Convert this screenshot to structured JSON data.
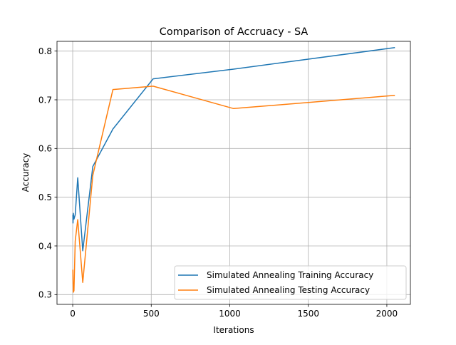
{
  "chart_data": {
    "type": "line",
    "title": "Comparison of Accruacy  - SA",
    "xlabel": "Iterations",
    "ylabel": "Accuracy",
    "xlim": [
      -100,
      2150
    ],
    "ylim": [
      0.28,
      0.82
    ],
    "xticks": [
      0,
      500,
      1000,
      1500,
      2000
    ],
    "xtick_labels": [
      "0",
      "500",
      "1000",
      "1500",
      "2000"
    ],
    "yticks": [
      0.3,
      0.4,
      0.5,
      0.6,
      0.7,
      0.8
    ],
    "ytick_labels": [
      "0.3",
      "0.4",
      "0.5",
      "0.6",
      "0.7",
      "0.8"
    ],
    "grid": true,
    "legend_position": "lower-right",
    "series": [
      {
        "name": "Simulated Annealing Training Accuracy",
        "color": "#1f77b4",
        "x": [
          1,
          2,
          4,
          8,
          16,
          32,
          64,
          128,
          256,
          512,
          1024,
          2048
        ],
        "y": [
          0.463,
          0.447,
          0.467,
          0.455,
          0.464,
          0.54,
          0.39,
          0.563,
          0.64,
          0.743,
          0.763,
          0.807
        ]
      },
      {
        "name": "Simulated Annealing Testing Accuracy",
        "color": "#ff7f0e",
        "x": [
          1,
          2,
          4,
          8,
          16,
          32,
          64,
          128,
          256,
          512,
          1024,
          2048
        ],
        "y": [
          0.35,
          0.33,
          0.305,
          0.308,
          0.41,
          0.454,
          0.325,
          0.545,
          0.721,
          0.728,
          0.682,
          0.709
        ]
      }
    ]
  }
}
